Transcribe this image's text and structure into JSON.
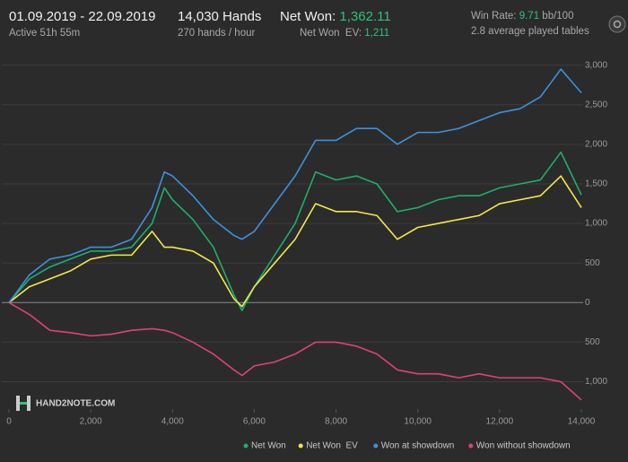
{
  "header": {
    "date_range": "01.09.2019 - 22.09.2019",
    "active": "Active 51h 55m",
    "hands": "14,030 Hands",
    "hands_rate": "270 hands / hour",
    "net_won_label": "Net Won:",
    "net_won_value": "1,362.11",
    "net_won_ev_label": "Net Won  EV:",
    "net_won_ev_value": "1,211",
    "win_rate_label": "Win Rate:",
    "win_rate_value": "9.71",
    "win_rate_unit": "bb/100",
    "tables": "2.8 average played tables",
    "logo": "HAND2NOTE.COM"
  },
  "chart_data": {
    "type": "line",
    "x": [
      0,
      500,
      1000,
      1500,
      2000,
      2500,
      3000,
      3500,
      3800,
      4000,
      4500,
      5000,
      5500,
      5700,
      6000,
      6500,
      7000,
      7500,
      8000,
      8500,
      9000,
      9500,
      10000,
      10500,
      11000,
      11500,
      12000,
      12500,
      13000,
      13500,
      14000
    ],
    "series": [
      {
        "name": "Net Won",
        "color": "#1fae6c",
        "values": [
          0,
          300,
          450,
          550,
          650,
          650,
          700,
          1000,
          1450,
          1300,
          1050,
          700,
          100,
          -100,
          200,
          600,
          1000,
          1650,
          1550,
          1600,
          1500,
          1150,
          1200,
          1300,
          1350,
          1350,
          1450,
          1500,
          1550,
          1900,
          1360
        ]
      },
      {
        "name": "Net Won  EV",
        "color": "#f2e84b",
        "values": [
          0,
          200,
          300,
          400,
          550,
          600,
          600,
          900,
          700,
          700,
          650,
          500,
          50,
          -50,
          200,
          500,
          800,
          1250,
          1150,
          1150,
          1100,
          800,
          950,
          1000,
          1050,
          1100,
          1250,
          1300,
          1350,
          1600,
          1200
        ]
      },
      {
        "name": "Won at showdown",
        "color": "#3b91e0",
        "values": [
          0,
          350,
          550,
          600,
          700,
          700,
          800,
          1200,
          1650,
          1600,
          1350,
          1050,
          850,
          800,
          900,
          1250,
          1600,
          2050,
          2050,
          2200,
          2200,
          2000,
          2150,
          2150,
          2200,
          2300,
          2400,
          2450,
          2600,
          2950,
          2650
        ]
      },
      {
        "name": "Won without showdown",
        "color": "#e0407a",
        "values": [
          0,
          -150,
          -350,
          -380,
          -420,
          -400,
          -350,
          -330,
          -350,
          -380,
          -500,
          -650,
          -850,
          -920,
          -800,
          -750,
          -650,
          -500,
          -500,
          -550,
          -650,
          -850,
          -900,
          -900,
          -950,
          -900,
          -950,
          -950,
          -950,
          -1000,
          -1230
        ]
      }
    ],
    "xlim": [
      0,
      14000
    ],
    "xticks": [
      0,
      {
        "value": 2000,
        "label": "2,000"
      },
      {
        "value": 4000,
        "label": "4,000"
      },
      {
        "value": 6000,
        "label": "6,000"
      },
      {
        "value": 8000,
        "label": "8,000"
      },
      {
        "value": 10000,
        "label": "10,000"
      },
      {
        "value": 12000,
        "label": "12,000"
      },
      {
        "value": 14000,
        "label": "14,000"
      }
    ],
    "ylim": [
      -1300,
      3200
    ],
    "yticks": [
      {
        "value": -1000,
        "label": "1,000"
      },
      {
        "value": -500,
        "label": "500"
      },
      0,
      500,
      {
        "value": 1000,
        "label": "1,000"
      },
      {
        "value": 1500,
        "label": "1,500"
      },
      {
        "value": 2000,
        "label": "2,000"
      },
      {
        "value": 2500,
        "label": "2,500"
      },
      {
        "value": 3000,
        "label": "3,000"
      }
    ],
    "grid": true,
    "legend": "bottom"
  }
}
